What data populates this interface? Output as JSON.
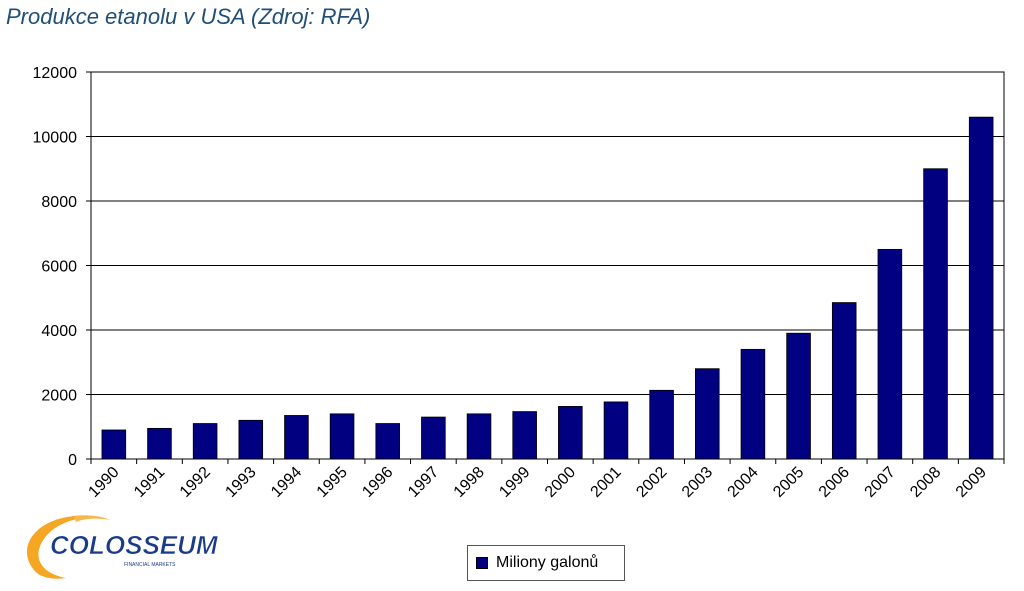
{
  "title": "Produkce etanolu v USA (Zdroj: RFA)",
  "logo": {
    "text": "COLOSSEUM",
    "subtext": "FINANCIAL MARKETS"
  },
  "colors": {
    "bar": "#000080",
    "title": "#1f4e79",
    "logo_orange": "#f5a623",
    "logo_blue": "#1a3a8a"
  },
  "chart_data": {
    "type": "bar",
    "title": "Produkce etanolu v USA (Zdroj: RFA)",
    "categories": [
      "1990",
      "1991",
      "1992",
      "1993",
      "1994",
      "1995",
      "1996",
      "1997",
      "1998",
      "1999",
      "2000",
      "2001",
      "2002",
      "2003",
      "2004",
      "2005",
      "2006",
      "2007",
      "2008",
      "2009"
    ],
    "series": [
      {
        "name": "Miliony galonů",
        "values": [
          900,
          950,
          1100,
          1200,
          1350,
          1400,
          1100,
          1300,
          1400,
          1470,
          1630,
          1770,
          2130,
          2800,
          3400,
          3900,
          4850,
          6500,
          9000,
          10600
        ]
      }
    ],
    "yticks": [
      0,
      2000,
      4000,
      6000,
      8000,
      10000,
      12000
    ],
    "ylim": [
      0,
      12000
    ],
    "grid": true,
    "legend": "bottom-center"
  }
}
